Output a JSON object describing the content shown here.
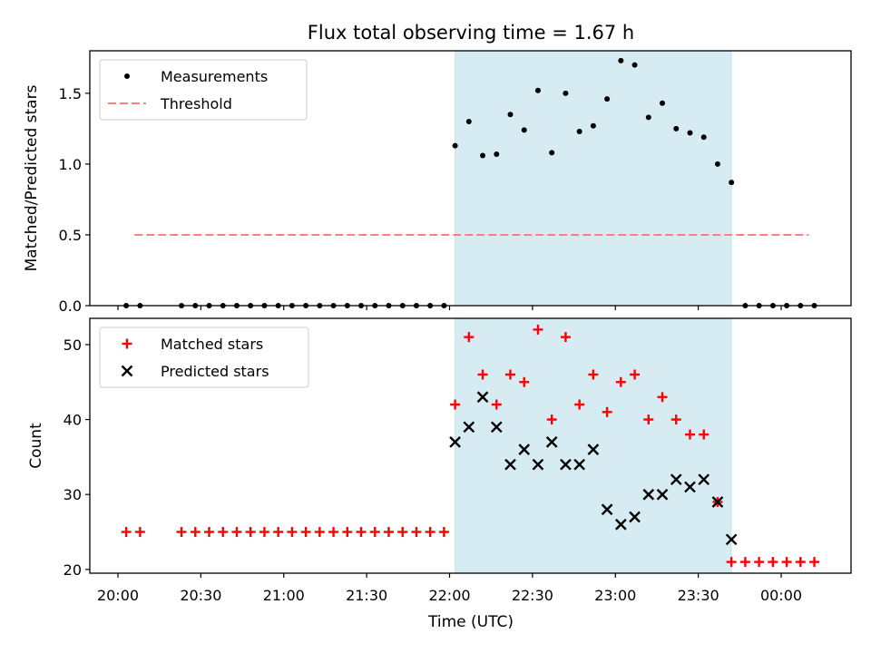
{
  "title": "Flux total observing time = 1.67 h",
  "xlabel": "Time (UTC)",
  "x_ticks": [
    "20:00",
    "20:30",
    "21:00",
    "21:30",
    "22:00",
    "22:30",
    "23:00",
    "23:30",
    "00:00"
  ],
  "colors": {
    "threshold": "#ff7f7f",
    "matched": "#ff0000",
    "predicted": "#000000",
    "shade": "#add8e6"
  },
  "chart_data": [
    {
      "type": "scatter",
      "ylabel": "Matched/Predicted stars",
      "ylim": [
        0,
        1.8
      ],
      "y_ticks": [
        "0.0",
        "0.5",
        "1.0",
        "1.5"
      ],
      "legend_position": "top-left",
      "shaded_interval": [
        "22:02",
        "23:42"
      ],
      "series": [
        {
          "name": "Measurements",
          "marker": "dot",
          "x": [
            "20:03",
            "20:08",
            "20:23",
            "20:28",
            "20:33",
            "20:38",
            "20:43",
            "20:48",
            "20:53",
            "20:58",
            "21:03",
            "21:08",
            "21:13",
            "21:18",
            "21:23",
            "21:28",
            "21:33",
            "21:38",
            "21:43",
            "21:48",
            "21:53",
            "21:58",
            "22:02",
            "22:07",
            "22:12",
            "22:17",
            "22:22",
            "22:27",
            "22:32",
            "22:37",
            "22:42",
            "22:47",
            "22:52",
            "22:57",
            "23:02",
            "23:07",
            "23:12",
            "23:17",
            "23:22",
            "23:27",
            "23:32",
            "23:37",
            "23:42",
            "23:47",
            "23:52",
            "23:57",
            "00:02",
            "00:07",
            "00:12"
          ],
          "y": [
            0,
            0,
            0,
            0,
            0,
            0,
            0,
            0,
            0,
            0,
            0,
            0,
            0,
            0,
            0,
            0,
            0,
            0,
            0,
            0,
            0,
            0,
            1.13,
            1.3,
            1.06,
            1.07,
            1.35,
            1.24,
            1.52,
            1.08,
            1.5,
            1.23,
            1.27,
            1.46,
            1.73,
            1.7,
            1.33,
            1.43,
            1.25,
            1.22,
            1.19,
            1.0,
            0.87,
            0,
            0,
            0,
            0,
            0,
            0
          ]
        },
        {
          "name": "Threshold",
          "line": "dashed",
          "x": [
            "20:06",
            "00:10"
          ],
          "y": [
            0.5,
            0.5
          ]
        }
      ]
    },
    {
      "type": "scatter",
      "ylabel": "Count",
      "ylim": [
        19.5,
        53.5
      ],
      "y_ticks": [
        "20",
        "30",
        "40",
        "50"
      ],
      "legend_position": "top-left",
      "shaded_interval": [
        "22:02",
        "23:42"
      ],
      "series": [
        {
          "name": "Matched stars",
          "marker": "plus",
          "x": [
            "20:03",
            "20:08",
            "20:23",
            "20:28",
            "20:33",
            "20:38",
            "20:43",
            "20:48",
            "20:53",
            "20:58",
            "21:03",
            "21:08",
            "21:13",
            "21:18",
            "21:23",
            "21:28",
            "21:33",
            "21:38",
            "21:43",
            "21:48",
            "21:53",
            "21:58",
            "22:02",
            "22:07",
            "22:12",
            "22:17",
            "22:22",
            "22:27",
            "22:32",
            "22:37",
            "22:42",
            "22:47",
            "22:52",
            "22:57",
            "23:02",
            "23:07",
            "23:12",
            "23:17",
            "23:22",
            "23:27",
            "23:32",
            "23:37",
            "23:42",
            "23:47",
            "23:52",
            "23:57",
            "00:02",
            "00:07",
            "00:12"
          ],
          "y": [
            25,
            25,
            25,
            25,
            25,
            25,
            25,
            25,
            25,
            25,
            25,
            25,
            25,
            25,
            25,
            25,
            25,
            25,
            25,
            25,
            25,
            25,
            42,
            51,
            46,
            42,
            46,
            45,
            52,
            40,
            51,
            42,
            46,
            41,
            45,
            46,
            40,
            43,
            40,
            38,
            38,
            29,
            21,
            21,
            21,
            21,
            21,
            21,
            21
          ]
        },
        {
          "name": "Predicted stars",
          "marker": "x",
          "x": [
            "22:02",
            "22:07",
            "22:12",
            "22:17",
            "22:22",
            "22:27",
            "22:32",
            "22:37",
            "22:42",
            "22:47",
            "22:52",
            "22:57",
            "23:02",
            "23:07",
            "23:12",
            "23:17",
            "23:22",
            "23:27",
            "23:32",
            "23:37",
            "23:42"
          ],
          "y": [
            37,
            39,
            43,
            39,
            34,
            36,
            34,
            37,
            34,
            34,
            36,
            28,
            26,
            27,
            30,
            30,
            32,
            31,
            32,
            29,
            24
          ]
        }
      ]
    }
  ]
}
